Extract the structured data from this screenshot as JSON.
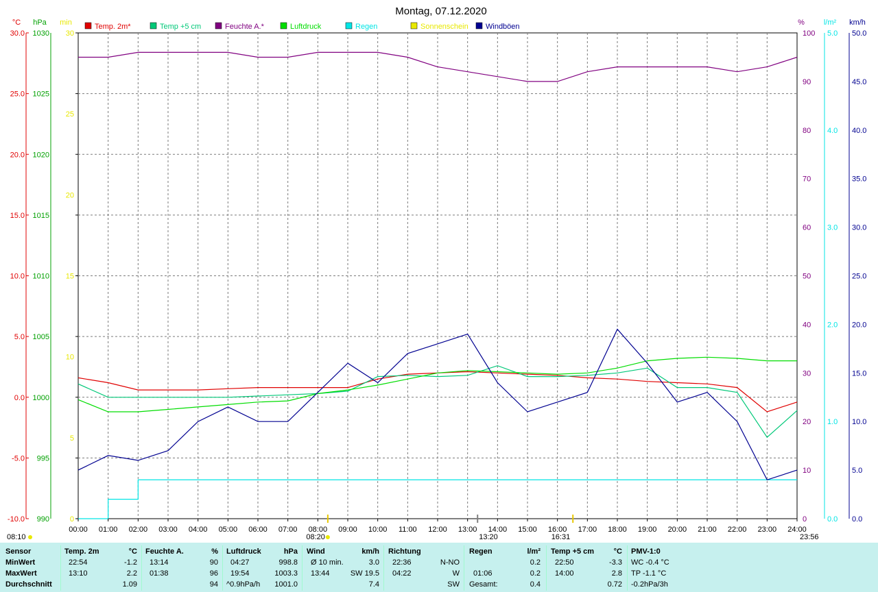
{
  "page_title": "Montag, 07.12.2020",
  "legend": [
    {
      "label": "Temp. 2m*",
      "color": "#e00000"
    },
    {
      "label": "Temp +5 cm",
      "color": "#00c878"
    },
    {
      "label": "Feuchte A.*",
      "color": "#800080"
    },
    {
      "label": "Luftdruck",
      "color": "#00dd00"
    },
    {
      "label": "Regen",
      "color": "#00e5e5"
    },
    {
      "label": "Sonnenschein",
      "color": "#e8e800"
    },
    {
      "label": "Windböen",
      "color": "#000090"
    }
  ],
  "axes": {
    "temp": {
      "unit": "°C",
      "ticks": [
        "30.0",
        "25.0",
        "20.0",
        "15.0",
        "10.0",
        "5.0",
        "0.0",
        "-5.0",
        "-10.0"
      ],
      "color": "#e00000"
    },
    "pressure": {
      "unit": "hPa",
      "ticks": [
        "1030",
        "1025",
        "1020",
        "1015",
        "1010",
        "1005",
        "1000",
        "995",
        "990"
      ],
      "color": "#00a000"
    },
    "sunshine": {
      "unit": "min",
      "ticks": [
        "30",
        "25",
        "20",
        "15",
        "10",
        "5",
        "0"
      ],
      "color": "#e8e800"
    },
    "humidity": {
      "unit": "%",
      "ticks": [
        "100",
        "90",
        "80",
        "70",
        "60",
        "50",
        "40",
        "30",
        "20",
        "10",
        "0"
      ],
      "color": "#800080"
    },
    "rain": {
      "unit": "l/m²",
      "ticks": [
        "5.0",
        "4.0",
        "3.0",
        "2.0",
        "1.0",
        "0.0"
      ],
      "color": "#00e5e5"
    },
    "wind": {
      "unit": "km/h",
      "ticks": [
        "50.0",
        "45.0",
        "40.0",
        "35.0",
        "30.0",
        "25.0",
        "20.0",
        "15.0",
        "10.0",
        "5.0",
        "0.0"
      ],
      "color": "#000090"
    },
    "time_ticks": [
      "00:00",
      "01:00",
      "02:00",
      "03:00",
      "04:00",
      "05:00",
      "06:00",
      "07:00",
      "08:00",
      "09:00",
      "10:00",
      "11:00",
      "12:00",
      "13:00",
      "14:00",
      "15:00",
      "16:00",
      "17:00",
      "18:00",
      "19:00",
      "20:00",
      "21:00",
      "22:00",
      "23:00",
      "24:00"
    ]
  },
  "time_markers": {
    "moonrise": "08:10",
    "sunrise": "08:20",
    "noon": "13:20",
    "sunset": "16:31",
    "moonset": "23:56"
  },
  "chart_data": {
    "type": "line",
    "x_unit": "hour of day",
    "x": [
      0,
      1,
      2,
      3,
      4,
      5,
      6,
      7,
      8,
      9,
      10,
      11,
      12,
      13,
      14,
      15,
      16,
      17,
      18,
      19,
      20,
      21,
      22,
      23,
      24
    ],
    "series": [
      {
        "name": "Temp. 2m*",
        "axis": "temp",
        "color": "#e00000",
        "values": [
          1.6,
          1.2,
          0.6,
          0.6,
          0.6,
          0.7,
          0.8,
          0.8,
          0.8,
          0.8,
          1.5,
          1.9,
          2.0,
          2.1,
          2.0,
          1.9,
          1.8,
          1.6,
          1.5,
          1.3,
          1.2,
          1.1,
          0.8,
          -1.2,
          -0.4
        ]
      },
      {
        "name": "Temp +5 cm",
        "axis": "temp",
        "color": "#00c878",
        "values": [
          1.1,
          0.0,
          0.0,
          0.0,
          0.0,
          0.0,
          0.1,
          0.2,
          0.3,
          0.5,
          1.7,
          1.8,
          1.7,
          1.8,
          2.6,
          1.7,
          1.7,
          1.8,
          2.0,
          2.4,
          0.8,
          0.8,
          0.4,
          -3.3,
          -1.1
        ]
      },
      {
        "name": "Feuchte A.*",
        "axis": "humidity",
        "color": "#800080",
        "values": [
          95,
          95,
          96,
          96,
          96,
          96,
          95,
          95,
          96,
          96,
          96,
          95,
          93,
          92,
          91,
          90,
          90,
          92,
          93,
          93,
          93,
          93,
          92,
          93,
          95
        ]
      },
      {
        "name": "Luftdruck",
        "axis": "pressure",
        "color": "#00dd00",
        "values": [
          999.8,
          998.8,
          998.8,
          999.0,
          999.2,
          999.4,
          999.6,
          999.7,
          1000.3,
          1000.6,
          1001.0,
          1001.5,
          1002.0,
          1002.2,
          1002.1,
          1002.0,
          1001.9,
          1002.0,
          1002.4,
          1003.0,
          1003.2,
          1003.3,
          1003.2,
          1003.0,
          1003.0
        ]
      },
      {
        "name": "Regen",
        "axis": "rain",
        "color": "#00e5e5",
        "values": [
          0.0,
          0.2,
          0.4,
          0.4,
          0.4,
          0.4,
          0.4,
          0.4,
          0.4,
          0.4,
          0.4,
          0.4,
          0.4,
          0.4,
          0.4,
          0.4,
          0.4,
          0.4,
          0.4,
          0.4,
          0.4,
          0.4,
          0.4,
          0.4,
          0.4
        ]
      },
      {
        "name": "Windböen",
        "axis": "wind",
        "color": "#000090",
        "values": [
          5.0,
          6.5,
          6.0,
          7.0,
          10.0,
          11.5,
          10.0,
          10.0,
          13.0,
          16.0,
          14.0,
          17.0,
          18.0,
          19.0,
          14.0,
          11.0,
          12.0,
          13.0,
          19.5,
          16.0,
          12.0,
          13.0,
          10.0,
          4.0,
          5.0
        ]
      }
    ],
    "ylim": {
      "temp": [
        -10,
        30
      ],
      "pressure": [
        990,
        1030
      ],
      "sunshine": [
        0,
        30
      ],
      "humidity": [
        0,
        100
      ],
      "rain": [
        0,
        5
      ],
      "wind": [
        0,
        50
      ]
    },
    "grid": true,
    "legend_position": "top"
  },
  "stats": {
    "row_labels": [
      "Sensor",
      "MinWert",
      "MaxWert",
      "Durchschnitt"
    ],
    "temp": {
      "header": "Temp. 2m",
      "unit": "°C",
      "min_time": "22:54",
      "min": "-1.2",
      "max_time": "13:10",
      "max": "2.2",
      "avg": "1.09"
    },
    "hum": {
      "header": "Feuchte A.",
      "unit": "%",
      "min_time": "13:14",
      "min": "90",
      "max_time": "01:38",
      "max": "96",
      "avg": "94"
    },
    "press": {
      "header": "Luftdruck",
      "unit": "hPa",
      "min_time": "04:27",
      "min": "998.8",
      "max_time": "19:54",
      "max": "1003.3",
      "trend": "^0.9hPa/h",
      "avg": "1001.0"
    },
    "wind": {
      "header": "Wind",
      "unit": "km/h",
      "avg10_label": "Ø 10 min.",
      "avg10": "3.0",
      "max_time": "13:44",
      "max": "SW 19.5",
      "avg": "7.4"
    },
    "dir": {
      "header": "Richtung",
      "min_time": "22:36",
      "min": "N-NO",
      "max_time": "04:22",
      "max": "W",
      "avg": "SW"
    },
    "rain": {
      "header": "Regen",
      "unit": "l/m²",
      "min": "0.2",
      "max_time": "01:06",
      "max": "0.2",
      "total_label": "Gesamt:",
      "total": "0.4"
    },
    "temp5": {
      "header": "Temp +5 cm",
      "unit": "°C",
      "min_time": "22:50",
      "min": "-3.3",
      "max_time": "14:00",
      "max": "2.8",
      "avg": "0.72"
    },
    "pmv": {
      "header": "PMV-1:0",
      "line1": "WC -0.4 °C",
      "line2": "TP -1.1 °C",
      "line3": "-0.2hPa/3h"
    }
  }
}
